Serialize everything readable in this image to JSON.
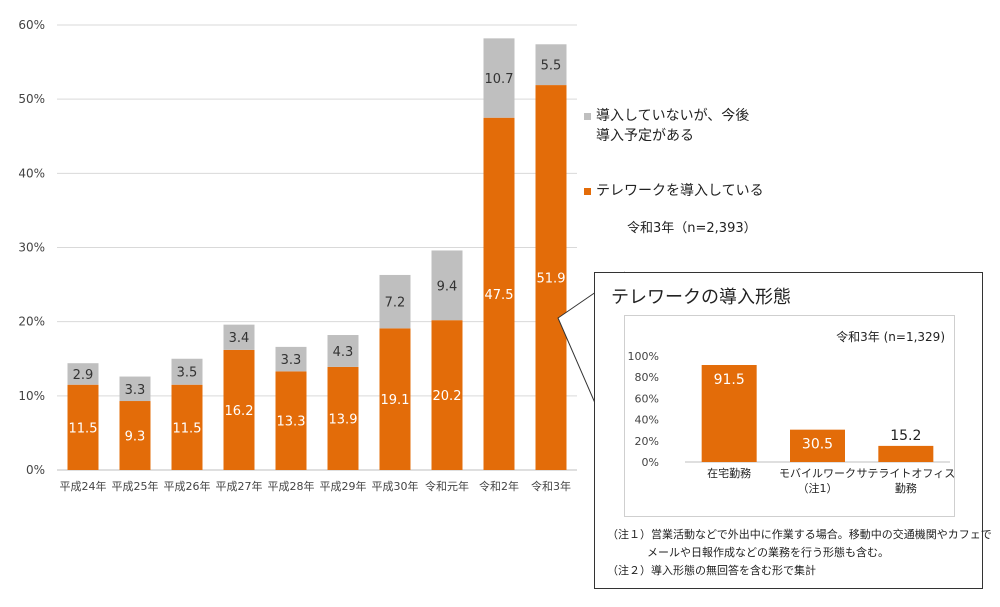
{
  "chart_data": [
    {
      "type": "bar",
      "stacked": true,
      "categories": [
        "平成24年",
        "平成25年",
        "平成26年",
        "平成27年",
        "平成28年",
        "平成29年",
        "平成30年",
        "令和元年",
        "令和2年",
        "令和3年"
      ],
      "series": [
        {
          "name": "テレワークを導入している",
          "color": "#E36C09",
          "values": [
            11.5,
            9.3,
            11.5,
            16.2,
            13.3,
            13.9,
            19.1,
            20.2,
            47.5,
            51.9
          ]
        },
        {
          "name": "導入していないが、今後導入予定がある",
          "color": "#BFBFBF",
          "values": [
            2.9,
            3.3,
            3.5,
            3.4,
            3.3,
            4.3,
            7.2,
            9.4,
            10.7,
            5.5
          ]
        }
      ],
      "yticks": [
        "0%",
        "10%",
        "20%",
        "30%",
        "40%",
        "50%",
        "60%"
      ],
      "ylim": [
        0,
        60
      ],
      "grid": true,
      "legend_position": "right",
      "note": "令和3年（n=2,393）"
    },
    {
      "type": "bar",
      "title": "テレワークの導入形態",
      "categories": [
        "在宅勤務",
        "モバイルワーク\n（注1）",
        "サテライトオフィス\n勤務"
      ],
      "values": [
        91.5,
        30.5,
        15.2
      ],
      "color": "#E36C09",
      "yticks": [
        "0%",
        "20%",
        "40%",
        "60%",
        "80%",
        "100%"
      ],
      "ylim": [
        0,
        100
      ],
      "grid": false,
      "note": "令和3年 (n=1,329)"
    }
  ],
  "legend": {
    "planned_line1": "導入していないが、今後",
    "planned_line2": "導入予定がある",
    "introduced": "テレワークを導入している",
    "planned_color": "#BFBFBF",
    "introduced_color": "#E36C09"
  },
  "footnotes": {
    "note1_line1": "（注１）営業活動などで外出中に作業する場合。移動中の交通機関やカフェで",
    "note1_line2": "メールや日報作成などの業務を行う形態も含む。",
    "note2": "（注２）導入形態の無回答を含む形で集計"
  }
}
